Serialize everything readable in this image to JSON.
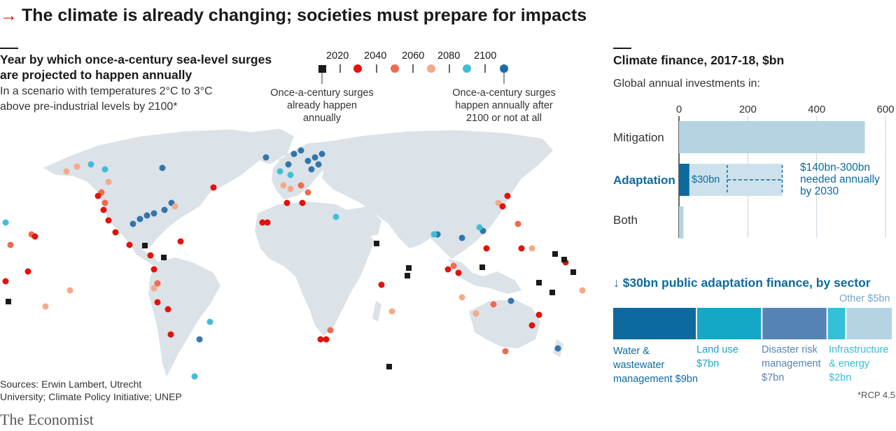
{
  "headline": {
    "arrow": "→",
    "text": "The climate is already changing; societies must prepare for impacts"
  },
  "map_panel": {
    "title_line1": "Year by which once-a-century sea-level surges",
    "title_line2": "are projected to happen annually",
    "desc_line1": "In a scenario with temperatures 2°C to 3°C",
    "desc_line2": "above pre-industrial levels by 2100*"
  },
  "map_legend": {
    "years": [
      "2020",
      "2040",
      "2060",
      "2080",
      "2100"
    ],
    "colors": {
      "already": "#1a1a1a",
      "y2040": "#e3120b",
      "y2060": "#f06a4f",
      "y2080": "#f4a98a",
      "y2100": "#3ebfd6",
      "after": "#1f6aa5"
    },
    "note_left_1": "Once-a-century surges",
    "note_left_2": "already happen",
    "note_left_3": "annually",
    "note_right_1": "Once-a-century surges",
    "note_right_2": "happen annually after",
    "note_right_3": "2100 or not at all"
  },
  "finance": {
    "title": "Climate finance, 2017-18, $bn",
    "subtitle": "Global annual investments in:",
    "adaptation_value_label": "$30bn",
    "need_label_1": "$140bn-300bn",
    "need_label_2": "needed annually",
    "need_label_3": "by 2030"
  },
  "sector_panel": {
    "title": "↓ $30bn public adaptation finance, by sector",
    "other_label": "Other $5bn",
    "labels": {
      "water_1": "Water &",
      "water_2": "wastewater",
      "water_3": "management $9bn",
      "land_1": "Land use",
      "land_2": "$7bn",
      "disaster_1": "Disaster risk",
      "disaster_2": "management",
      "disaster_3": "$7bn",
      "infra_1": "Infrastructure",
      "infra_2": "& energy",
      "infra_3": "$2bn"
    }
  },
  "chart_data": [
    {
      "type": "bar",
      "title": "Climate finance, 2017-18, $bn",
      "categories": [
        "Mitigation",
        "Adaptation",
        "Both"
      ],
      "values": [
        540,
        30,
        13
      ],
      "adaptation_needed_range": [
        140,
        300
      ],
      "xlim": [
        0,
        600
      ],
      "x_ticks": [
        0,
        200,
        400,
        600
      ],
      "orientation": "horizontal",
      "colors": {
        "bar": "#b5d4e3",
        "highlight": "#0d6a9e",
        "need": "#cde1ec"
      }
    },
    {
      "type": "bar",
      "title": "$30bn public adaptation finance, by sector",
      "categories": [
        "Water & wastewater management",
        "Land use",
        "Disaster risk management",
        "Infrastructure & energy",
        "Other"
      ],
      "values": [
        9,
        7,
        7,
        2,
        5
      ],
      "total": 30,
      "orientation": "stacked-horizontal",
      "colors": [
        "#0d6a9e",
        "#17a7c6",
        "#5683b5",
        "#34c0d6",
        "#b5d4e3"
      ]
    }
  ],
  "footer": {
    "sources_1": "Sources: Erwin Lambert, Utrecht",
    "sources_2": "University; Climate Policy Initiative; UNEP",
    "note": "*RCP 4.5",
    "brand": "The Economist"
  }
}
